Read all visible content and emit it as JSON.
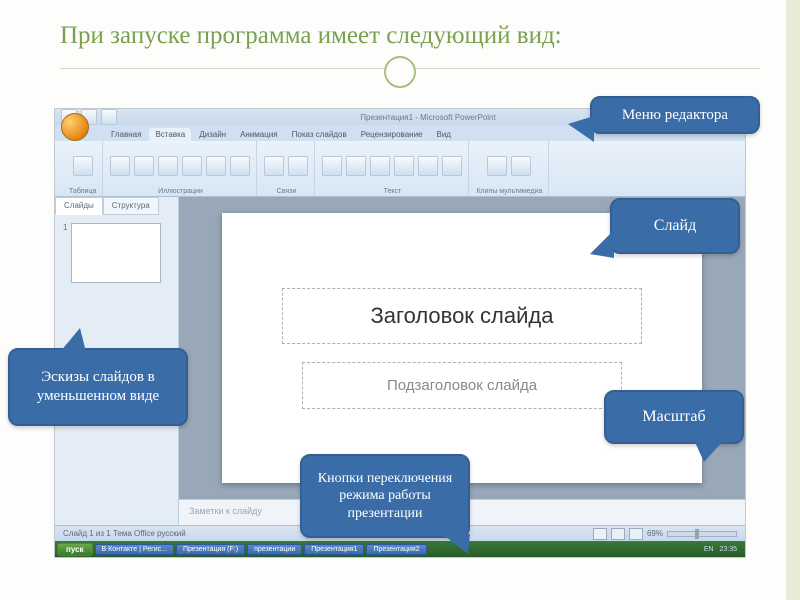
{
  "page": {
    "title": "При запуске программа имеет следующий вид:"
  },
  "callouts": {
    "menu": "Меню редактора",
    "slide": "Слайд",
    "zoom": "Масштаб",
    "thumbs": "Эскизы слайдов в уменьшенном виде",
    "views": "Кнопки переключения режима работы презентации"
  },
  "powerpoint": {
    "window_title": "Презентация1 - Microsoft PowerPoint",
    "ribbon_tabs": [
      "Главная",
      "Вставка",
      "Дизайн",
      "Анимация",
      "Показ слайдов",
      "Рецензирование",
      "Вид"
    ],
    "active_tab_index": 1,
    "ribbon_groups": [
      {
        "label": "Таблица",
        "count": 1
      },
      {
        "label": "Иллюстрации",
        "count": 6
      },
      {
        "label": "Связи",
        "count": 2
      },
      {
        "label": "Текст",
        "count": 6
      },
      {
        "label": "Клипы мультимедиа",
        "count": 2
      }
    ],
    "thumb_tabs": [
      "Слайды",
      "Структура"
    ],
    "slides": [
      {
        "num": "1"
      }
    ],
    "slide_title_placeholder": "Заголовок слайда",
    "slide_subtitle_placeholder": "Подзаголовок слайда",
    "notes_placeholder": "Заметки к слайду",
    "status_left": "Слайд 1 из 1    Тема Office    русский",
    "zoom_pct": "69%",
    "taskbar": {
      "start": "пуск",
      "items": [
        "В Контакте | Регис...",
        "Презентация (F:)",
        "презентации",
        "Презентация1",
        "Презентация2"
      ],
      "tray_time": "23:35",
      "tray_lang": "EN"
    }
  },
  "colors": {
    "callout_fill": "#3a6da8",
    "callout_border": "#355f93",
    "title_color": "#7aa050",
    "accent_circle": "#a8c080"
  }
}
